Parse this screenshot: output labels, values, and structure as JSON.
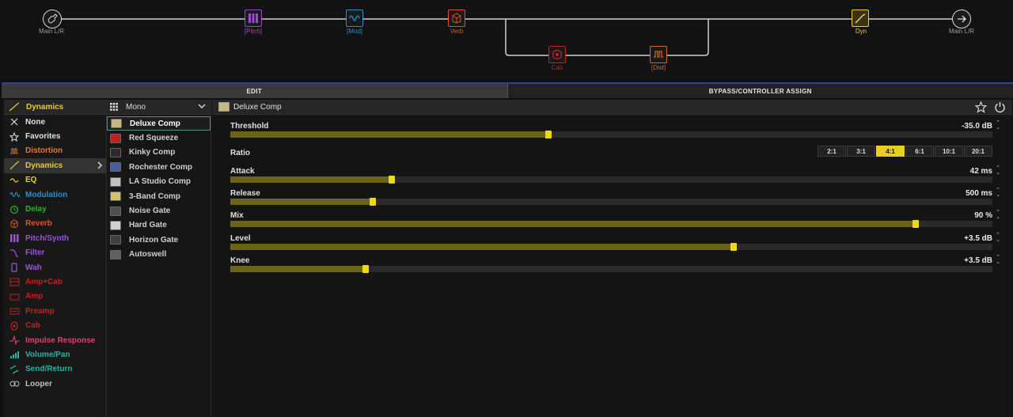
{
  "chain": {
    "input_label": "Main L/R",
    "output_label": "Main L/R",
    "blocks": [
      {
        "label": "[Pitch]",
        "color": "#9b4bd0",
        "icon": "pitch-icon"
      },
      {
        "label": "[Mod]",
        "color": "#2a8fd0",
        "icon": "modulation-icon"
      },
      {
        "label": "Verb",
        "color": "#d8542a",
        "icon": "reverb-icon"
      },
      {
        "label": "Cab",
        "color": "#c02020",
        "icon": "cab-icon"
      },
      {
        "label": "[Dist]",
        "color": "#d06a2a",
        "icon": "distortion-icon"
      },
      {
        "label": "Dyn",
        "color": "#e8d020",
        "icon": "dynamics-icon"
      }
    ]
  },
  "tabs": [
    {
      "label": "EDIT",
      "active": true
    },
    {
      "label": "BYPASS/CONTROLLER ASSIGN",
      "active": false
    }
  ],
  "categories": {
    "header": "Dynamics",
    "items": [
      {
        "label": "None",
        "color": "#e0e0e0",
        "icon": "x-icon"
      },
      {
        "label": "Favorites",
        "color": "#e0e0e0",
        "icon": "star-icon"
      },
      {
        "label": "Distortion",
        "color": "#e07a3a",
        "icon": "distortion-icon"
      },
      {
        "label": "Dynamics",
        "color": "#e8d020",
        "icon": "dynamics-icon"
      },
      {
        "label": "EQ",
        "color": "#e8d020",
        "icon": "eq-icon"
      },
      {
        "label": "Modulation",
        "color": "#2a8fd0",
        "icon": "modulation-icon"
      },
      {
        "label": "Delay",
        "color": "#30b030",
        "icon": "delay-icon"
      },
      {
        "label": "Reverb",
        "color": "#e0542a",
        "icon": "reverb-icon"
      },
      {
        "label": "Pitch/Synth",
        "color": "#a050e0",
        "icon": "pitch-icon"
      },
      {
        "label": "Filter",
        "color": "#a050e0",
        "icon": "filter-icon"
      },
      {
        "label": "Wah",
        "color": "#a050e0",
        "icon": "wah-icon"
      },
      {
        "label": "Amp+Cab",
        "color": "#c82020",
        "icon": "amp-cab-icon"
      },
      {
        "label": "Amp",
        "color": "#c82020",
        "icon": "amp-icon"
      },
      {
        "label": "Preamp",
        "color": "#c82020",
        "icon": "preamp-icon"
      },
      {
        "label": "Cab",
        "color": "#c82020",
        "icon": "cab-icon"
      },
      {
        "label": "Impulse Response",
        "color": "#e04070",
        "icon": "impulse-icon"
      },
      {
        "label": "Volume/Pan",
        "color": "#30b0a0",
        "icon": "volume-icon"
      },
      {
        "label": "Send/Return",
        "color": "#30b0a0",
        "icon": "send-return-icon"
      },
      {
        "label": "Looper",
        "color": "#c0c0c0",
        "icon": "looper-icon"
      }
    ]
  },
  "models": {
    "header": "Mono",
    "items": [
      {
        "label": "Deluxe Comp",
        "color": "#c8b880"
      },
      {
        "label": "Red Squeeze",
        "color": "#c02020"
      },
      {
        "label": "Kinky Comp",
        "color": "#2a2a2a"
      },
      {
        "label": "Rochester Comp",
        "color": "#4060a0"
      },
      {
        "label": "LA Studio Comp",
        "color": "#c0c0c0"
      },
      {
        "label": "3-Band Comp",
        "color": "#d0c070"
      },
      {
        "label": "Noise Gate",
        "color": "#505050"
      },
      {
        "label": "Hard Gate",
        "color": "#d0d0d0"
      },
      {
        "label": "Horizon Gate",
        "color": "#404040"
      },
      {
        "label": "Autoswell",
        "color": "#606060"
      }
    ]
  },
  "params_header": "Deluxe Comp",
  "params": [
    {
      "name": "Threshold",
      "value": "-35.0 dB",
      "fraction": 0.417
    },
    {
      "name": "Attack",
      "value": "42 ms",
      "fraction": 0.212
    },
    {
      "name": "Release",
      "value": "500 ms",
      "fraction": 0.187
    },
    {
      "name": "Mix",
      "value": "90 %",
      "fraction": 0.899
    },
    {
      "name": "Level",
      "value": "+3.5 dB",
      "fraction": 0.66
    },
    {
      "name": "Knee",
      "value": "+3.5 dB",
      "fraction": 0.178
    }
  ],
  "ratio": {
    "name": "Ratio",
    "options": [
      "2:1",
      "3:1",
      "4:1",
      "6:1",
      "10:1",
      "20:1"
    ],
    "selected": "4:1"
  }
}
